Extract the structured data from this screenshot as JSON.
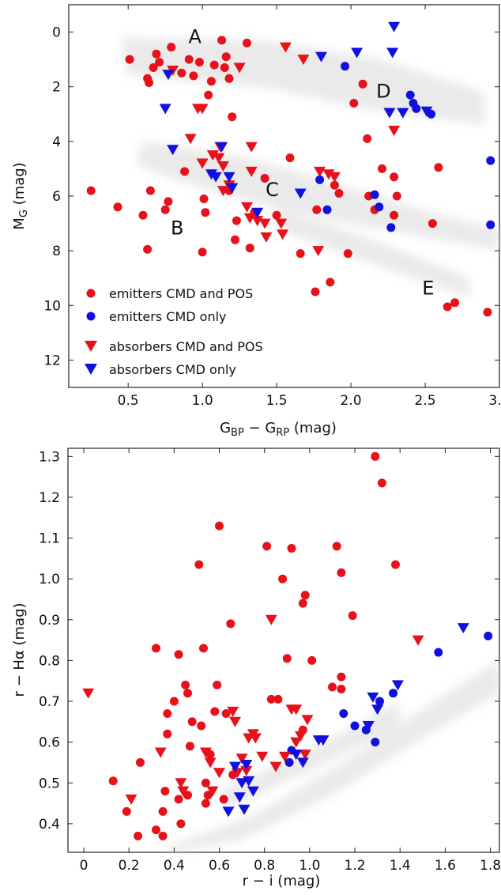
{
  "chart_data": [
    {
      "type": "scatter",
      "xlabel": "G_BP − G_RP (mag)",
      "xlabel_parts": {
        "base": "G",
        "sub1": "BP",
        "mid": " − G",
        "sub2": "RP",
        "tail": " (mag)"
      },
      "ylabel": "M_G (mag)",
      "ylabel_parts": {
        "base": "M",
        "sub": "G",
        "tail": " (mag)"
      },
      "xlim": [
        0.1,
        3.0
      ],
      "ylim": [
        13.0,
        -1.0
      ],
      "y_inverted": true,
      "xticks": [
        0.5,
        1.0,
        1.5,
        2.0,
        2.5,
        3.0
      ],
      "xtick_labels": [
        "0.5",
        "1.0",
        "1.5",
        "2.0",
        "2.5",
        "3.0"
      ],
      "yticks": [
        0,
        2,
        4,
        6,
        8,
        10,
        12
      ],
      "ytick_labels": [
        "0",
        "2",
        "4",
        "6",
        "8",
        "10",
        "12"
      ],
      "background": "grey field-star density (main sequence and giant branch)",
      "legend_position": "bottom-left",
      "legend": [
        {
          "label": "emitters CMD and POS",
          "marker": "circle",
          "color": "#e8101a"
        },
        {
          "label": "emitters CMD only",
          "marker": "circle",
          "color": "#1010e0"
        },
        {
          "label": "absorbers CMD and POS",
          "marker": "triangle-down",
          "color": "#e8101a"
        },
        {
          "label": "absorbers CMD only",
          "marker": "triangle-down",
          "color": "#1010e0"
        }
      ],
      "annotations": [
        {
          "text": "A",
          "x": 0.95,
          "y": 0.4
        },
        {
          "text": "B",
          "x": 0.83,
          "y": 7.4
        },
        {
          "text": "C",
          "x": 1.47,
          "y": 6.0
        },
        {
          "text": "D",
          "x": 2.22,
          "y": 2.4
        },
        {
          "text": "E",
          "x": 2.52,
          "y": 9.6
        }
      ],
      "series": [
        {
          "name": "emitters CMD and POS",
          "marker": "circle",
          "color": "#e8101a",
          "points": [
            [
              0.51,
              1.0
            ],
            [
              0.67,
              1.3
            ],
            [
              0.69,
              0.8
            ],
            [
              0.63,
              1.7
            ],
            [
              0.64,
              1.85
            ],
            [
              0.71,
              1.1
            ],
            [
              0.86,
              1.5
            ],
            [
              0.79,
              0.55
            ],
            [
              0.91,
              1.0
            ],
            [
              0.94,
              1.6
            ],
            [
              0.98,
              1.1
            ],
            [
              1.04,
              2.3
            ],
            [
              1.06,
              1.8
            ],
            [
              1.08,
              1.2
            ],
            [
              1.13,
              0.3
            ],
            [
              1.15,
              1.3
            ],
            [
              1.16,
              0.9
            ],
            [
              1.18,
              1.7
            ],
            [
              1.3,
              0.4
            ],
            [
              1.2,
              3.1
            ],
            [
              0.88,
              5.1
            ],
            [
              1.01,
              6.1
            ],
            [
              1.02,
              6.6
            ],
            [
              0.75,
              6.5
            ],
            [
              0.65,
              5.8
            ],
            [
              0.6,
              6.7
            ],
            [
              0.77,
              6.2
            ],
            [
              0.43,
              6.4
            ],
            [
              0.25,
              5.8
            ],
            [
              0.63,
              7.95
            ],
            [
              1.0,
              8.05
            ],
            [
              1.22,
              7.6
            ],
            [
              1.23,
              6.9
            ],
            [
              1.18,
              5.8
            ],
            [
              1.32,
              7.9
            ],
            [
              1.42,
              5.35
            ],
            [
              1.35,
              6.6
            ],
            [
              1.5,
              6.7
            ],
            [
              1.59,
              4.6
            ],
            [
              1.66,
              8.1
            ],
            [
              1.76,
              9.5
            ],
            [
              1.77,
              6.5
            ],
            [
              1.86,
              9.15
            ],
            [
              1.89,
              5.6
            ],
            [
              1.92,
              5.9
            ],
            [
              1.98,
              8.1
            ],
            [
              2.08,
              1.9
            ],
            [
              2.02,
              2.6
            ],
            [
              2.11,
              3.9
            ],
            [
              2.12,
              6.0
            ],
            [
              2.16,
              6.5
            ],
            [
              2.21,
              5.0
            ],
            [
              2.29,
              6.7
            ],
            [
              2.29,
              5.3
            ],
            [
              2.31,
              6.0
            ],
            [
              2.55,
              7.0
            ],
            [
              2.59,
              4.95
            ],
            [
              2.65,
              10.05
            ],
            [
              2.7,
              9.9
            ],
            [
              2.92,
              10.25
            ]
          ]
        },
        {
          "name": "emitters CMD only",
          "marker": "circle",
          "color": "#1010e0",
          "points": [
            [
              1.96,
              1.25
            ],
            [
              2.4,
              2.3
            ],
            [
              2.42,
              2.6
            ],
            [
              2.44,
              2.8
            ],
            [
              2.54,
              3.0
            ],
            [
              2.94,
              4.7
            ],
            [
              2.94,
              7.05
            ],
            [
              1.79,
              5.4
            ],
            [
              1.84,
              6.5
            ],
            [
              2.27,
              7.15
            ],
            [
              2.19,
              6.4
            ],
            [
              2.16,
              5.95
            ]
          ]
        },
        {
          "name": "absorbers CMD and POS",
          "marker": "triangle-down",
          "color": "#e8101a",
          "points": [
            [
              0.8,
              1.4
            ],
            [
              0.97,
              2.8
            ],
            [
              1.0,
              2.8
            ],
            [
              1.25,
              1.3
            ],
            [
              1.56,
              0.55
            ],
            [
              1.68,
              1.0
            ],
            [
              0.92,
              3.9
            ],
            [
              1.0,
              4.8
            ],
            [
              1.07,
              4.5
            ],
            [
              1.11,
              4.6
            ],
            [
              1.14,
              4.9
            ],
            [
              1.14,
              5.8
            ],
            [
              1.12,
              4.2
            ],
            [
              1.18,
              5.6
            ],
            [
              1.33,
              4.2
            ],
            [
              1.33,
              5.1
            ],
            [
              1.3,
              6.4
            ],
            [
              1.32,
              6.8
            ],
            [
              1.37,
              6.9
            ],
            [
              1.42,
              7.0
            ],
            [
              1.43,
              7.5
            ],
            [
              1.53,
              7.0
            ],
            [
              1.54,
              7.4
            ],
            [
              1.79,
              5.1
            ],
            [
              1.85,
              5.2
            ],
            [
              1.89,
              5.3
            ],
            [
              1.78,
              8.0
            ],
            [
              2.29,
              3.6
            ]
          ]
        },
        {
          "name": "absorbers CMD only",
          "marker": "triangle-down",
          "color": "#1010e0",
          "points": [
            [
              0.77,
              1.55
            ],
            [
              0.75,
              2.8
            ],
            [
              0.8,
              4.3
            ],
            [
              1.06,
              5.2
            ],
            [
              1.09,
              5.3
            ],
            [
              1.13,
              4.2
            ],
            [
              1.18,
              5.3
            ],
            [
              1.2,
              5.7
            ],
            [
              1.37,
              6.6
            ],
            [
              1.66,
              5.9
            ],
            [
              1.8,
              0.9
            ],
            [
              2.04,
              0.75
            ],
            [
              2.28,
              0.75
            ],
            [
              2.29,
              -0.2
            ],
            [
              2.26,
              2.95
            ],
            [
              2.35,
              2.95
            ],
            [
              2.51,
              2.9
            ]
          ]
        }
      ]
    },
    {
      "type": "scatter",
      "xlabel": "r − i (mag)",
      "ylabel": "r − Hα (mag)",
      "xlim": [
        -0.07,
        1.84
      ],
      "ylim": [
        0.33,
        1.32
      ],
      "xticks": [
        0.0,
        0.2,
        0.4,
        0.6,
        0.8,
        1.0,
        1.2,
        1.4,
        1.6,
        1.8
      ],
      "xtick_labels": [
        "0",
        "0.2",
        "0.4",
        "0.6",
        "0.8",
        "1.0",
        "1.2",
        "1.4",
        "1.6",
        "1.8"
      ],
      "yticks": [
        0.4,
        0.5,
        0.6,
        0.7,
        0.8,
        0.9,
        1.0,
        1.1,
        1.2,
        1.3
      ],
      "ytick_labels": [
        "0.4",
        "0.5",
        "0.6",
        "0.7",
        "0.8",
        "0.9",
        "1.0",
        "1.1",
        "1.2",
        "1.3"
      ],
      "background": "grey field-star density band",
      "series": [
        {
          "name": "emitters CMD and POS",
          "marker": "circle",
          "color": "#e8101a",
          "points": [
            [
              0.13,
              0.505
            ],
            [
              0.19,
              0.43
            ],
            [
              0.25,
              0.55
            ],
            [
              0.24,
              0.37
            ],
            [
              0.32,
              0.385
            ],
            [
              0.35,
              0.37
            ],
            [
              0.32,
              0.83
            ],
            [
              0.35,
              0.43
            ],
            [
              0.36,
              0.48
            ],
            [
              0.37,
              0.67
            ],
            [
              0.37,
              0.62
            ],
            [
              0.4,
              0.7
            ],
            [
              0.42,
              0.815
            ],
            [
              0.42,
              0.46
            ],
            [
              0.43,
              0.4
            ],
            [
              0.45,
              0.74
            ],
            [
              0.46,
              0.72
            ],
            [
              0.46,
              0.47
            ],
            [
              0.47,
              0.59
            ],
            [
              0.48,
              0.65
            ],
            [
              0.51,
              1.035
            ],
            [
              0.52,
              0.64
            ],
            [
              0.53,
              0.83
            ],
            [
              0.54,
              0.45
            ],
            [
              0.54,
              0.5
            ],
            [
              0.55,
              0.47
            ],
            [
              0.56,
              0.57
            ],
            [
              0.58,
              0.675
            ],
            [
              0.59,
              0.74
            ],
            [
              0.6,
              1.13
            ],
            [
              0.62,
              0.46
            ],
            [
              0.63,
              0.67
            ],
            [
              0.65,
              0.89
            ],
            [
              0.66,
              0.52
            ],
            [
              0.81,
              1.08
            ],
            [
              0.83,
              0.705
            ],
            [
              0.86,
              0.705
            ],
            [
              0.88,
              1.0
            ],
            [
              0.9,
              0.805
            ],
            [
              0.92,
              1.075
            ],
            [
              0.97,
              0.63
            ],
            [
              0.97,
              0.94
            ],
            [
              0.98,
              0.96
            ],
            [
              1.01,
              0.8
            ],
            [
              1.1,
              0.735
            ],
            [
              1.12,
              1.08
            ],
            [
              1.14,
              0.76
            ],
            [
              1.14,
              0.73
            ],
            [
              1.14,
              1.015
            ],
            [
              1.19,
              0.91
            ],
            [
              1.29,
              1.3
            ],
            [
              1.32,
              1.235
            ],
            [
              1.38,
              1.035
            ]
          ]
        },
        {
          "name": "emitters CMD only",
          "marker": "circle",
          "color": "#1010e0",
          "points": [
            [
              0.91,
              0.55
            ],
            [
              0.92,
              0.58
            ],
            [
              1.15,
              0.67
            ],
            [
              1.2,
              0.64
            ],
            [
              1.25,
              0.63
            ],
            [
              1.29,
              0.6
            ],
            [
              1.31,
              0.7
            ],
            [
              1.37,
              0.72
            ],
            [
              1.57,
              0.82
            ],
            [
              1.79,
              0.86
            ]
          ]
        },
        {
          "name": "absorbers CMD and POS",
          "marker": "triangle-down",
          "color": "#e8101a",
          "points": [
            [
              0.02,
              0.72
            ],
            [
              0.21,
              0.46
            ],
            [
              0.34,
              0.575
            ],
            [
              0.43,
              0.5
            ],
            [
              0.44,
              0.48
            ],
            [
              0.54,
              0.575
            ],
            [
              0.56,
              0.55
            ],
            [
              0.57,
              0.48
            ],
            [
              0.6,
              0.525
            ],
            [
              0.66,
              0.675
            ],
            [
              0.67,
              0.65
            ],
            [
              0.68,
              0.525
            ],
            [
              0.7,
              0.56
            ],
            [
              0.72,
              0.53
            ],
            [
              0.73,
              0.61
            ],
            [
              0.75,
              0.62
            ],
            [
              0.76,
              0.61
            ],
            [
              0.79,
              0.565
            ],
            [
              0.83,
              0.9
            ],
            [
              0.85,
              0.54
            ],
            [
              0.89,
              0.565
            ],
            [
              0.92,
              0.68
            ],
            [
              0.94,
              0.68
            ],
            [
              0.94,
              0.6
            ],
            [
              0.96,
              0.615
            ],
            [
              0.98,
              0.57
            ],
            [
              0.99,
              0.655
            ],
            [
              1.48,
              0.85
            ]
          ]
        },
        {
          "name": "absorbers CMD only",
          "marker": "triangle-down",
          "color": "#1010e0",
          "points": [
            [
              0.64,
              0.43
            ],
            [
              0.67,
              0.54
            ],
            [
              0.69,
              0.465
            ],
            [
              0.7,
              0.5
            ],
            [
              0.71,
              0.435
            ],
            [
              0.72,
              0.545
            ],
            [
              0.73,
              0.505
            ],
            [
              0.75,
              0.48
            ],
            [
              0.94,
              0.57
            ],
            [
              0.97,
              0.55
            ],
            [
              1.04,
              0.605
            ],
            [
              1.06,
              0.605
            ],
            [
              1.26,
              0.64
            ],
            [
              1.28,
              0.71
            ],
            [
              1.3,
              0.68
            ],
            [
              1.39,
              0.74
            ],
            [
              1.68,
              0.88
            ]
          ]
        }
      ]
    }
  ]
}
